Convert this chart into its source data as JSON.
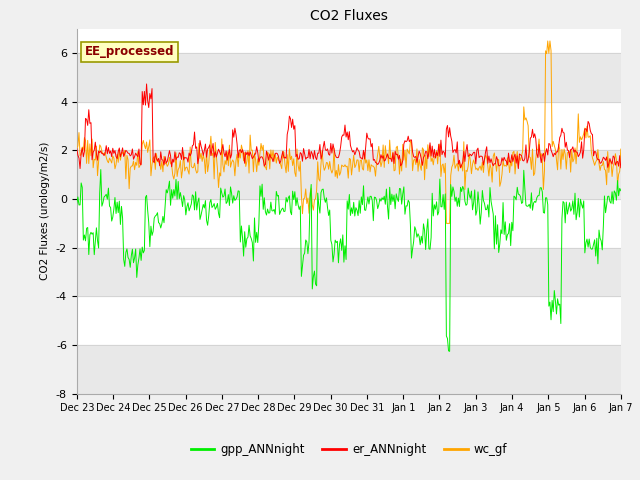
{
  "title": "CO2 Fluxes",
  "ylabel": "CO2 Fluxes (urology/m2/s)",
  "ylim": [
    -8,
    7
  ],
  "yticks": [
    -8,
    -6,
    -4,
    -2,
    0,
    2,
    4,
    6
  ],
  "annotation": "EE_processed",
  "annotation_color": "#8B0000",
  "annotation_bg": "#FFFFC0",
  "annotation_border": "#999900",
  "line_colors": {
    "gpp": "#00EE00",
    "er": "#FF0000",
    "wc": "#FFA500"
  },
  "legend_labels": [
    "gpp_ANNnight",
    "er_ANNnight",
    "wc_gf"
  ],
  "fig_bg": "#F0F0F0",
  "plot_bg": "#FFFFFF",
  "band_color": "#E8E8E8",
  "n_points": 500,
  "seed": 12345
}
